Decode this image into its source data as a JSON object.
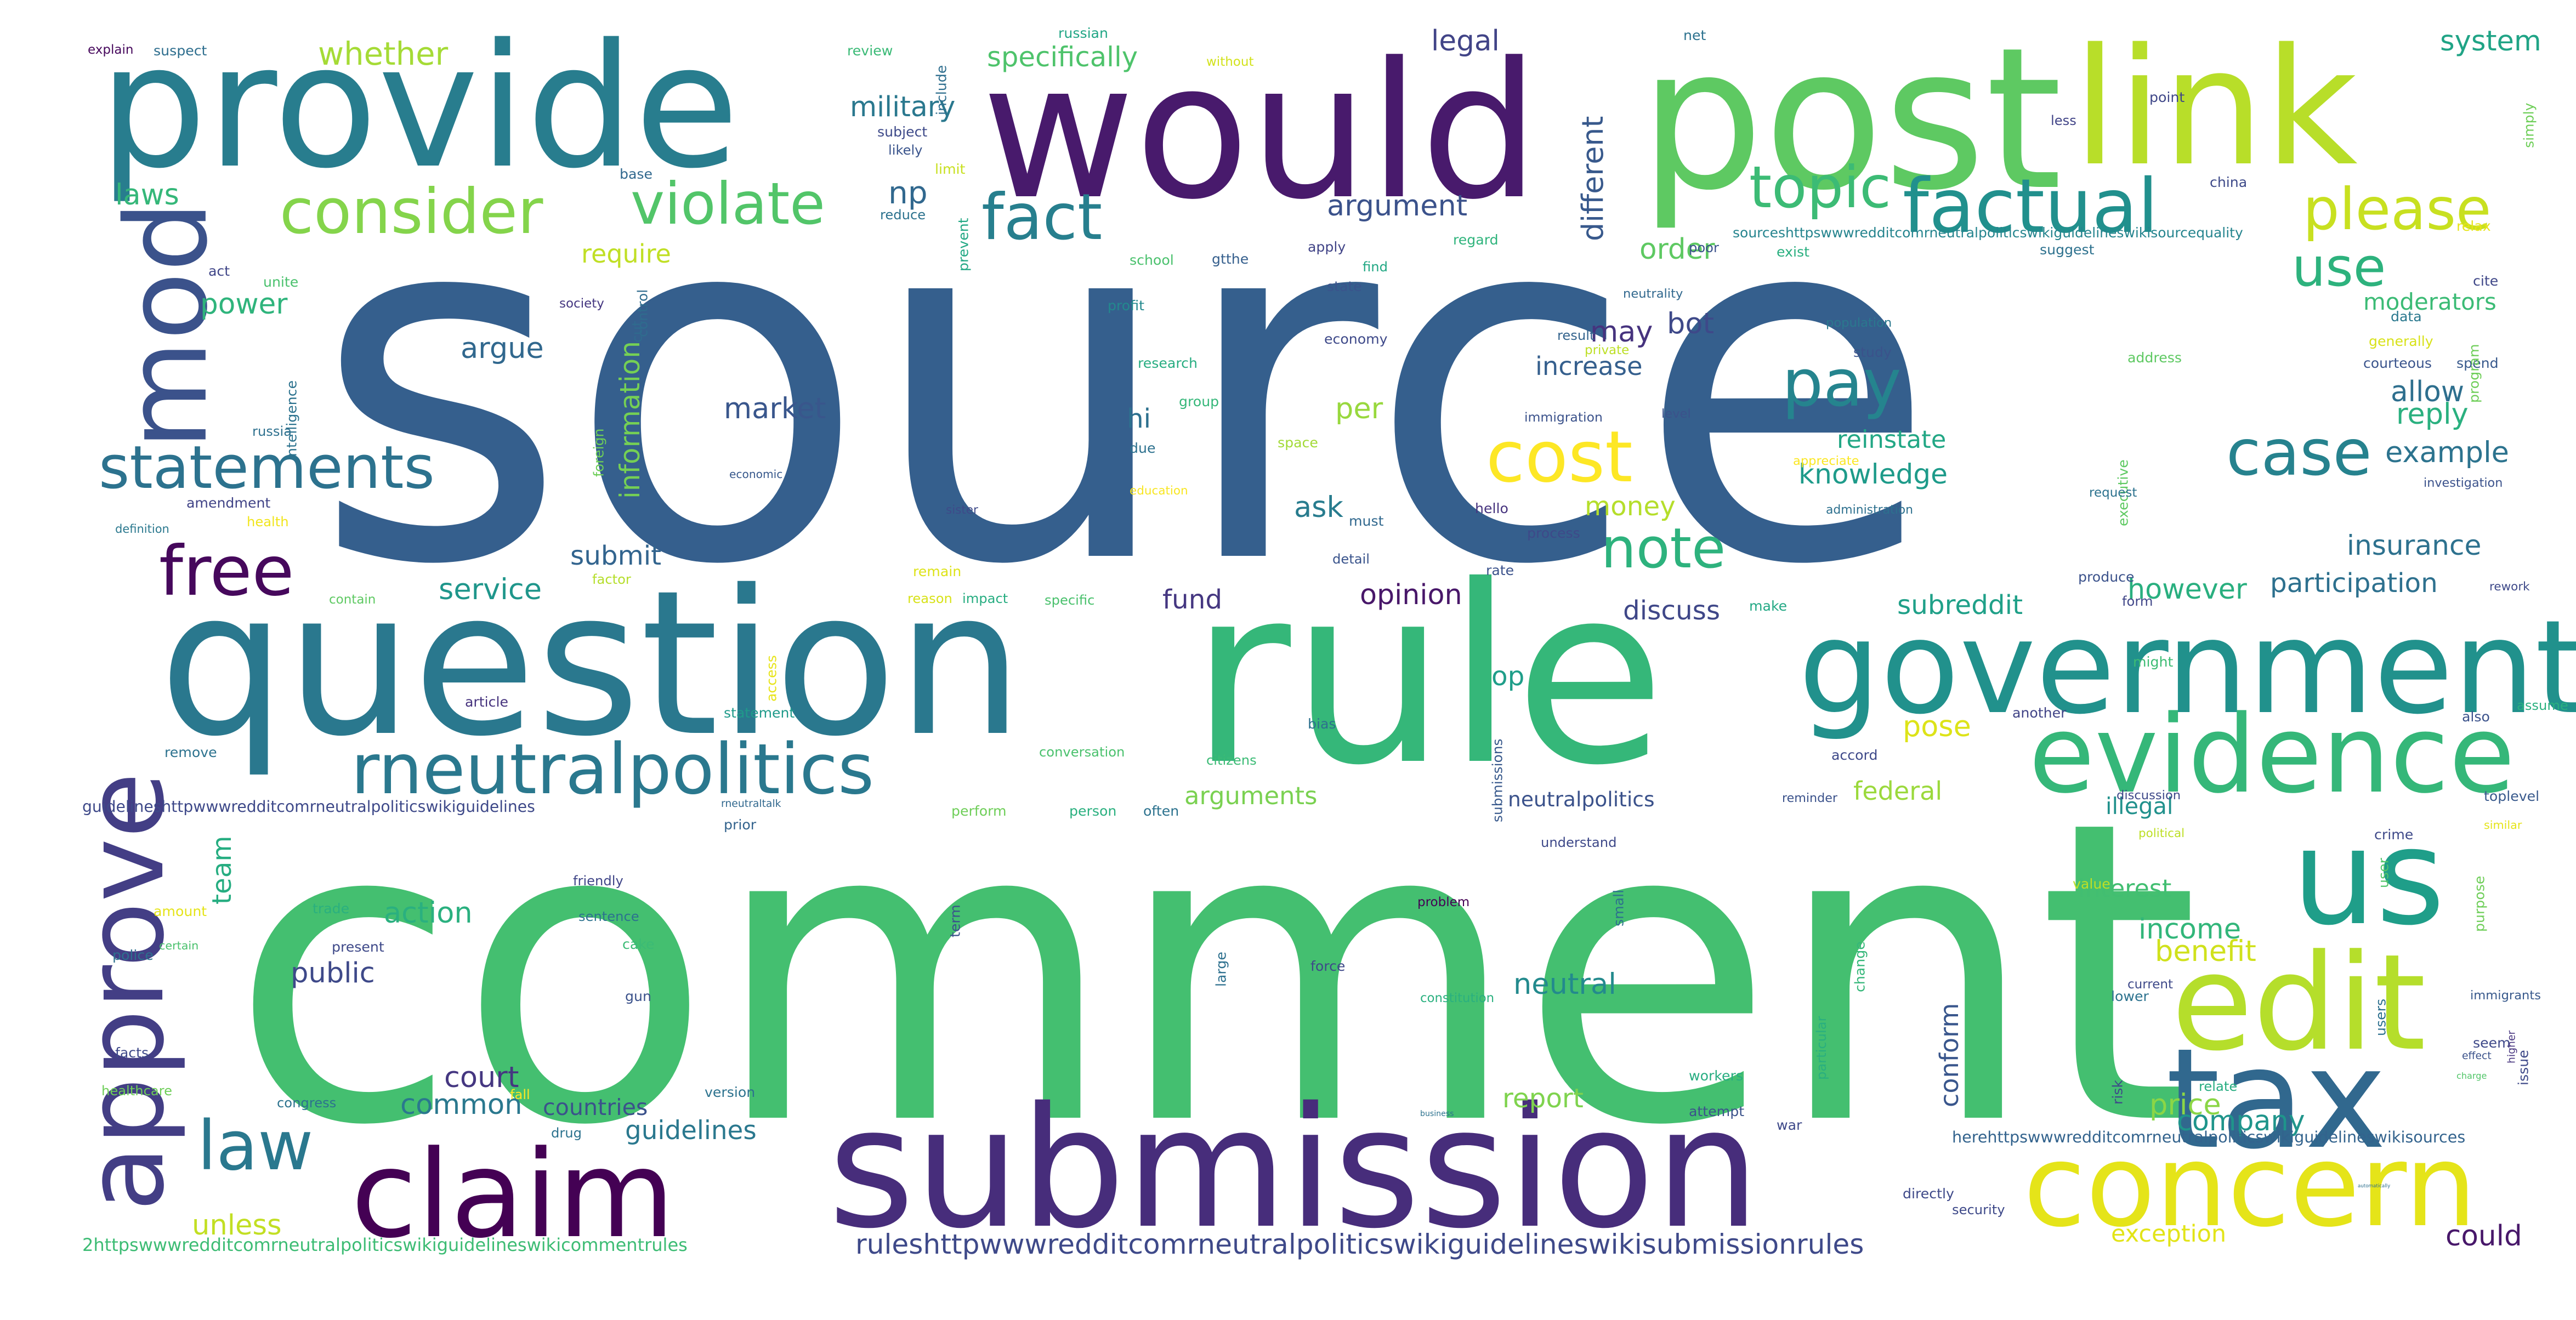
{
  "words": [
    {
      "text": "source",
      "color": "#355f8d"
    },
    {
      "text": "comment",
      "color": "#44bf70"
    },
    {
      "text": "rule",
      "color": "#35b779"
    },
    {
      "text": "question",
      "color": "#2a788e"
    },
    {
      "text": "submission",
      "color": "#472d7b"
    },
    {
      "text": "would",
      "color": "#481a6c"
    },
    {
      "text": "post",
      "color": "#5ec962"
    },
    {
      "text": "link",
      "color": "#b8de29"
    },
    {
      "text": "provide",
      "color": "#287d8e"
    },
    {
      "text": "government",
      "color": "#21918c"
    },
    {
      "text": "evidence",
      "color": "#35b779"
    },
    {
      "text": "us",
      "color": "#1f9e89"
    },
    {
      "text": "edit",
      "color": "#b5de2b"
    },
    {
      "text": "tax",
      "color": "#31688e"
    },
    {
      "text": "concern",
      "color": "#e5e419"
    },
    {
      "text": "claim",
      "color": "#440154"
    },
    {
      "text": "approve",
      "color": "#433e85"
    },
    {
      "text": "mod",
      "color": "#3b528b"
    },
    {
      "text": "statements",
      "color": "#2c728e"
    },
    {
      "text": "free",
      "color": "#46085c"
    },
    {
      "text": "law",
      "color": "#2a788e"
    },
    {
      "text": "rneutralpolitics",
      "color": "#2a788e"
    },
    {
      "text": "consider",
      "color": "#84d44b"
    },
    {
      "text": "violate",
      "color": "#52c569"
    },
    {
      "text": "fact",
      "color": "#277f8e"
    },
    {
      "text": "topic",
      "color": "#3cbb75"
    },
    {
      "text": "factual",
      "color": "#21908d"
    },
    {
      "text": "please",
      "color": "#c8e020"
    },
    {
      "text": "pay",
      "color": "#25848e"
    },
    {
      "text": "cost",
      "color": "#fde725"
    },
    {
      "text": "note",
      "color": "#2db27d"
    },
    {
      "text": "case",
      "color": "#26828e"
    },
    {
      "text": "use",
      "color": "#2db27d"
    },
    {
      "text": "whether",
      "color": "#a5db36"
    },
    {
      "text": "specifically",
      "color": "#4ec36b"
    },
    {
      "text": "military",
      "color": "#2a788e"
    },
    {
      "text": "legal",
      "color": "#414487"
    },
    {
      "text": "np",
      "color": "#31688e"
    },
    {
      "text": "laws",
      "color": "#35b779"
    },
    {
      "text": "argument",
      "color": "#3b528b"
    },
    {
      "text": "different",
      "color": "#38598c"
    },
    {
      "text": "system",
      "color": "#20a486"
    },
    {
      "text": "order",
      "color": "#5ec962"
    },
    {
      "text": "require",
      "color": "#c0df25"
    },
    {
      "text": "power",
      "color": "#2fb47c"
    },
    {
      "text": "argue",
      "color": "#31688e"
    },
    {
      "text": "information",
      "color": "#75d054"
    },
    {
      "text": "may",
      "color": "#46337e"
    },
    {
      "text": "bot",
      "color": "#3e4989"
    },
    {
      "text": "increase",
      "color": "#355f8d"
    },
    {
      "text": "moderators",
      "color": "#3bbb75"
    },
    {
      "text": "market",
      "color": "#39568c"
    },
    {
      "text": "hi",
      "color": "#2d708e"
    },
    {
      "text": "allow",
      "color": "#2e6f8e"
    },
    {
      "text": "reinstate",
      "color": "#22a785"
    },
    {
      "text": "knowledge",
      "color": "#1e9b8a"
    },
    {
      "text": "reply",
      "color": "#2ab07f"
    },
    {
      "text": "example",
      "color": "#2c738e"
    },
    {
      "text": "per",
      "color": "#98d83e"
    },
    {
      "text": "money",
      "color": "#b5de2b"
    },
    {
      "text": "ask",
      "color": "#287c8e"
    },
    {
      "text": "submit",
      "color": "#32648e"
    },
    {
      "text": "insurance",
      "color": "#2d718e"
    },
    {
      "text": "participation",
      "color": "#2d708e"
    },
    {
      "text": "service",
      "color": "#1f968b"
    },
    {
      "text": "opinion",
      "color": "#481769"
    },
    {
      "text": "fund",
      "color": "#453781"
    },
    {
      "text": "discuss",
      "color": "#3f4788"
    },
    {
      "text": "subreddit",
      "color": "#1fa088"
    },
    {
      "text": "however",
      "color": "#29af7f"
    },
    {
      "text": "op",
      "color": "#1f9e89"
    },
    {
      "text": "pose",
      "color": "#dde318"
    },
    {
      "text": "arguments",
      "color": "#7ad151"
    },
    {
      "text": "federal",
      "color": "#9bd93c"
    },
    {
      "text": "neutralpolitics",
      "color": "#3b528b"
    },
    {
      "text": "illegal",
      "color": "#21918c"
    },
    {
      "text": "team",
      "color": "#26ad81"
    },
    {
      "text": "action",
      "color": "#2ab07f"
    },
    {
      "text": "interest",
      "color": "#42be71"
    },
    {
      "text": "income",
      "color": "#32b67a"
    },
    {
      "text": "benefit",
      "color": "#d0e11c"
    },
    {
      "text": "public",
      "color": "#3e4989"
    },
    {
      "text": "neutral",
      "color": "#238a8d"
    },
    {
      "text": "conform",
      "color": "#39568c"
    },
    {
      "text": "company",
      "color": "#1f958b"
    },
    {
      "text": "court",
      "color": "#453781"
    },
    {
      "text": "common",
      "color": "#2a788e"
    },
    {
      "text": "report",
      "color": "#7fd34e"
    },
    {
      "text": "price",
      "color": "#8bd646"
    },
    {
      "text": "countries",
      "color": "#3b528b"
    },
    {
      "text": "guidelines",
      "color": "#2a788e"
    },
    {
      "text": "unless",
      "color": "#c2df23"
    },
    {
      "text": "exception",
      "color": "#e2e418"
    },
    {
      "text": "could",
      "color": "#48186a"
    },
    {
      "text": "ruleshttpwwwredditcomrneutralpoliticswikiguidelineswikisubmissionrules",
      "color": "#3e4989"
    },
    {
      "text": "2httpswwwredditcomrneutralpoliticswikiguidelineswikicommentrules",
      "color": "#3dbc74"
    },
    {
      "text": "herehttpswwwredditcomrneutralpoliticswikiguidelineswikisources",
      "color": "#33638d"
    },
    {
      "text": "guidelineshttpwwwredditcomrneutralpoliticswikiguidelines",
      "color": "#3e4989"
    },
    {
      "text": "sourceshttpswwwredditcomrneutralpoliticswikiguidelineswikisourcequality",
      "color": "#25848e"
    },
    {
      "text": "explain",
      "color": "#46085c"
    },
    {
      "text": "suspect",
      "color": "#2e6e8e"
    },
    {
      "text": "review",
      "color": "#3aba76"
    },
    {
      "text": "include",
      "color": "#2e6e8e"
    },
    {
      "text": "without",
      "color": "#d2e21b"
    },
    {
      "text": "russian",
      "color": "#21a685"
    },
    {
      "text": "net",
      "color": "#2c728e"
    },
    {
      "text": "point",
      "color": "#3f4788"
    },
    {
      "text": "less",
      "color": "#414487"
    },
    {
      "text": "simply",
      "color": "#6ece58"
    },
    {
      "text": "subject",
      "color": "#3e4a89"
    },
    {
      "text": "likely",
      "color": "#3a548c"
    },
    {
      "text": "limit",
      "color": "#c8e020"
    },
    {
      "text": "base",
      "color": "#31688e"
    },
    {
      "text": "reduce",
      "color": "#2c728e"
    },
    {
      "text": "prevent",
      "color": "#22a884"
    },
    {
      "text": "china",
      "color": "#3e4a89"
    },
    {
      "text": "regard",
      "color": "#2fb47c"
    },
    {
      "text": "suggest",
      "color": "#2d718e"
    },
    {
      "text": "relax",
      "color": "#e7e419"
    },
    {
      "text": "act",
      "color": "#404688"
    },
    {
      "text": "unite",
      "color": "#4ac16d"
    },
    {
      "text": "apply",
      "color": "#414487"
    },
    {
      "text": "find",
      "color": "#22a884"
    },
    {
      "text": "exist",
      "color": "#29af7f"
    },
    {
      "text": "poor",
      "color": "#3b528b"
    },
    {
      "text": "gtthe",
      "color": "#355f8d"
    },
    {
      "text": "school",
      "color": "#4ac16d"
    },
    {
      "text": "cite",
      "color": "#3f4788"
    },
    {
      "text": "control",
      "color": "#2f6c8e"
    },
    {
      "text": "society",
      "color": "#453781"
    },
    {
      "text": "state",
      "color": "#3a548c"
    },
    {
      "text": "profit",
      "color": "#23898e"
    },
    {
      "text": "neutrality",
      "color": "#31688e"
    },
    {
      "text": "data",
      "color": "#2a788e"
    },
    {
      "text": "generally",
      "color": "#d8e219"
    },
    {
      "text": "address",
      "color": "#5ec962"
    },
    {
      "text": "courteous",
      "color": "#3a548c"
    },
    {
      "text": "spend",
      "color": "#38598c"
    },
    {
      "text": "program",
      "color": "#6ece58"
    },
    {
      "text": "economy",
      "color": "#3e4989"
    },
    {
      "text": "result",
      "color": "#33638d"
    },
    {
      "text": "population",
      "color": "#2a788e"
    },
    {
      "text": "private",
      "color": "#bddf26"
    },
    {
      "text": "study",
      "color": "#3b528b"
    },
    {
      "text": "research",
      "color": "#27ad81"
    },
    {
      "text": "intelligence",
      "color": "#2c728e"
    },
    {
      "text": "russia",
      "color": "#2d708e"
    },
    {
      "text": "group",
      "color": "#35b779"
    },
    {
      "text": "space",
      "color": "#a2da37"
    },
    {
      "text": "immigration",
      "color": "#3b528b"
    },
    {
      "text": "level",
      "color": "#3b528b"
    },
    {
      "text": "foreign",
      "color": "#6ece58"
    },
    {
      "text": "cut",
      "color": "#2f6b8e"
    },
    {
      "text": "due",
      "color": "#2d718e"
    },
    {
      "text": "executive",
      "color": "#5ec962"
    },
    {
      "text": "appreciate",
      "color": "#fbe723"
    },
    {
      "text": "investigation",
      "color": "#3b528b"
    },
    {
      "text": "request",
      "color": "#2c728e"
    },
    {
      "text": "amendment",
      "color": "#414487"
    },
    {
      "text": "economic",
      "color": "#38598c"
    },
    {
      "text": "education",
      "color": "#f8e621"
    },
    {
      "text": "definition",
      "color": "#2a788e"
    },
    {
      "text": "health",
      "color": "#f1e51d"
    },
    {
      "text": "sister",
      "color": "#3e4a89"
    },
    {
      "text": "must",
      "color": "#31688e"
    },
    {
      "text": "hello",
      "color": "#46337e"
    },
    {
      "text": "process",
      "color": "#3e4989"
    },
    {
      "text": "administration",
      "color": "#2d708e"
    },
    {
      "text": "remain",
      "color": "#dde318"
    },
    {
      "text": "factor",
      "color": "#b5de2b"
    },
    {
      "text": "detail",
      "color": "#3a548c"
    },
    {
      "text": "rate",
      "color": "#3b528b"
    },
    {
      "text": "produce",
      "color": "#3b528b"
    },
    {
      "text": "rework",
      "color": "#3e4989"
    },
    {
      "text": "contain",
      "color": "#5ec962"
    },
    {
      "text": "reason",
      "color": "#d8e219"
    },
    {
      "text": "impact",
      "color": "#27ad81"
    },
    {
      "text": "specific",
      "color": "#4ac16d"
    },
    {
      "text": "make",
      "color": "#22a884"
    },
    {
      "text": "form",
      "color": "#404688"
    },
    {
      "text": "access",
      "color": "#e7e419"
    },
    {
      "text": "might",
      "color": "#3dbc74"
    },
    {
      "text": "article",
      "color": "#46337e"
    },
    {
      "text": "statement",
      "color": "#1f9a8a"
    },
    {
      "text": "another",
      "color": "#414487"
    },
    {
      "text": "also",
      "color": "#3b528b"
    },
    {
      "text": "assume",
      "color": "#2ab07f"
    },
    {
      "text": "bias",
      "color": "#2d708e"
    },
    {
      "text": "remove",
      "color": "#2c728e"
    },
    {
      "text": "conversation",
      "color": "#4ac16d"
    },
    {
      "text": "citizens",
      "color": "#3bbb75"
    },
    {
      "text": "accord",
      "color": "#3e4989"
    },
    {
      "text": "submissions",
      "color": "#38598c"
    },
    {
      "text": "discussion",
      "color": "#3e4989"
    },
    {
      "text": "toplevel",
      "color": "#38598c"
    },
    {
      "text": "reminder",
      "color": "#3b528b"
    },
    {
      "text": "rneutraltalk",
      "color": "#31688e"
    },
    {
      "text": "prior",
      "color": "#33638d"
    },
    {
      "text": "perform",
      "color": "#6ece58"
    },
    {
      "text": "person",
      "color": "#2ab07f"
    },
    {
      "text": "often",
      "color": "#2c728e"
    },
    {
      "text": "political",
      "color": "#bddf26"
    },
    {
      "text": "similar",
      "color": "#e5e419"
    },
    {
      "text": "crime",
      "color": "#3e4989"
    },
    {
      "text": "understand",
      "color": "#3e4989"
    },
    {
      "text": "friendly",
      "color": "#404688"
    },
    {
      "text": "sentence",
      "color": "#2c728e"
    },
    {
      "text": "trade",
      "color": "#2ab07f"
    },
    {
      "text": "amount",
      "color": "#e5e419"
    },
    {
      "text": "present",
      "color": "#3e4989"
    },
    {
      "text": "police",
      "color": "#2d708e"
    },
    {
      "text": "certain",
      "color": "#4ac16d"
    },
    {
      "text": "problem",
      "color": "#440154"
    },
    {
      "text": "term",
      "color": "#3b528b"
    },
    {
      "text": "small",
      "color": "#2d708e"
    },
    {
      "text": "value",
      "color": "#bddf26"
    },
    {
      "text": "user",
      "color": "#52c569"
    },
    {
      "text": "purpose",
      "color": "#6ece58"
    },
    {
      "text": "cake",
      "color": "#3bbb75"
    },
    {
      "text": "gun",
      "color": "#3b528b"
    },
    {
      "text": "large",
      "color": "#2d708e"
    },
    {
      "text": "force",
      "color": "#3e4989"
    },
    {
      "text": "constitution",
      "color": "#2ab07f"
    },
    {
      "text": "change",
      "color": "#35b779"
    },
    {
      "text": "current",
      "color": "#3e4989"
    },
    {
      "text": "lower",
      "color": "#2c728e"
    },
    {
      "text": "users",
      "color": "#2d708e"
    },
    {
      "text": "immigrants",
      "color": "#38598c"
    },
    {
      "text": "facts",
      "color": "#3e4989"
    },
    {
      "text": "healthcare",
      "color": "#6ece58"
    },
    {
      "text": "congress",
      "color": "#2c728e"
    },
    {
      "text": "version",
      "color": "#2c728e"
    },
    {
      "text": "fall",
      "color": "#fde725"
    },
    {
      "text": "particular",
      "color": "#29af7f"
    },
    {
      "text": "workers",
      "color": "#27ad81"
    },
    {
      "text": "effect",
      "color": "#3b528b"
    },
    {
      "text": "issue",
      "color": "#3e4989"
    },
    {
      "text": "seem",
      "color": "#3e4989"
    },
    {
      "text": "charge",
      "color": "#52c569"
    },
    {
      "text": "higher",
      "color": "#46337e"
    },
    {
      "text": "relate",
      "color": "#27ad81"
    },
    {
      "text": "risk",
      "color": "#3e4989"
    },
    {
      "text": "drug",
      "color": "#2c728e"
    },
    {
      "text": "business",
      "color": "#2c728e"
    },
    {
      "text": "attempt",
      "color": "#3b528b"
    },
    {
      "text": "war",
      "color": "#3e4989"
    },
    {
      "text": "automatically",
      "color": "#2d708e"
    },
    {
      "text": "directly",
      "color": "#3e4989"
    },
    {
      "text": "security",
      "color": "#3e4989"
    }
  ]
}
